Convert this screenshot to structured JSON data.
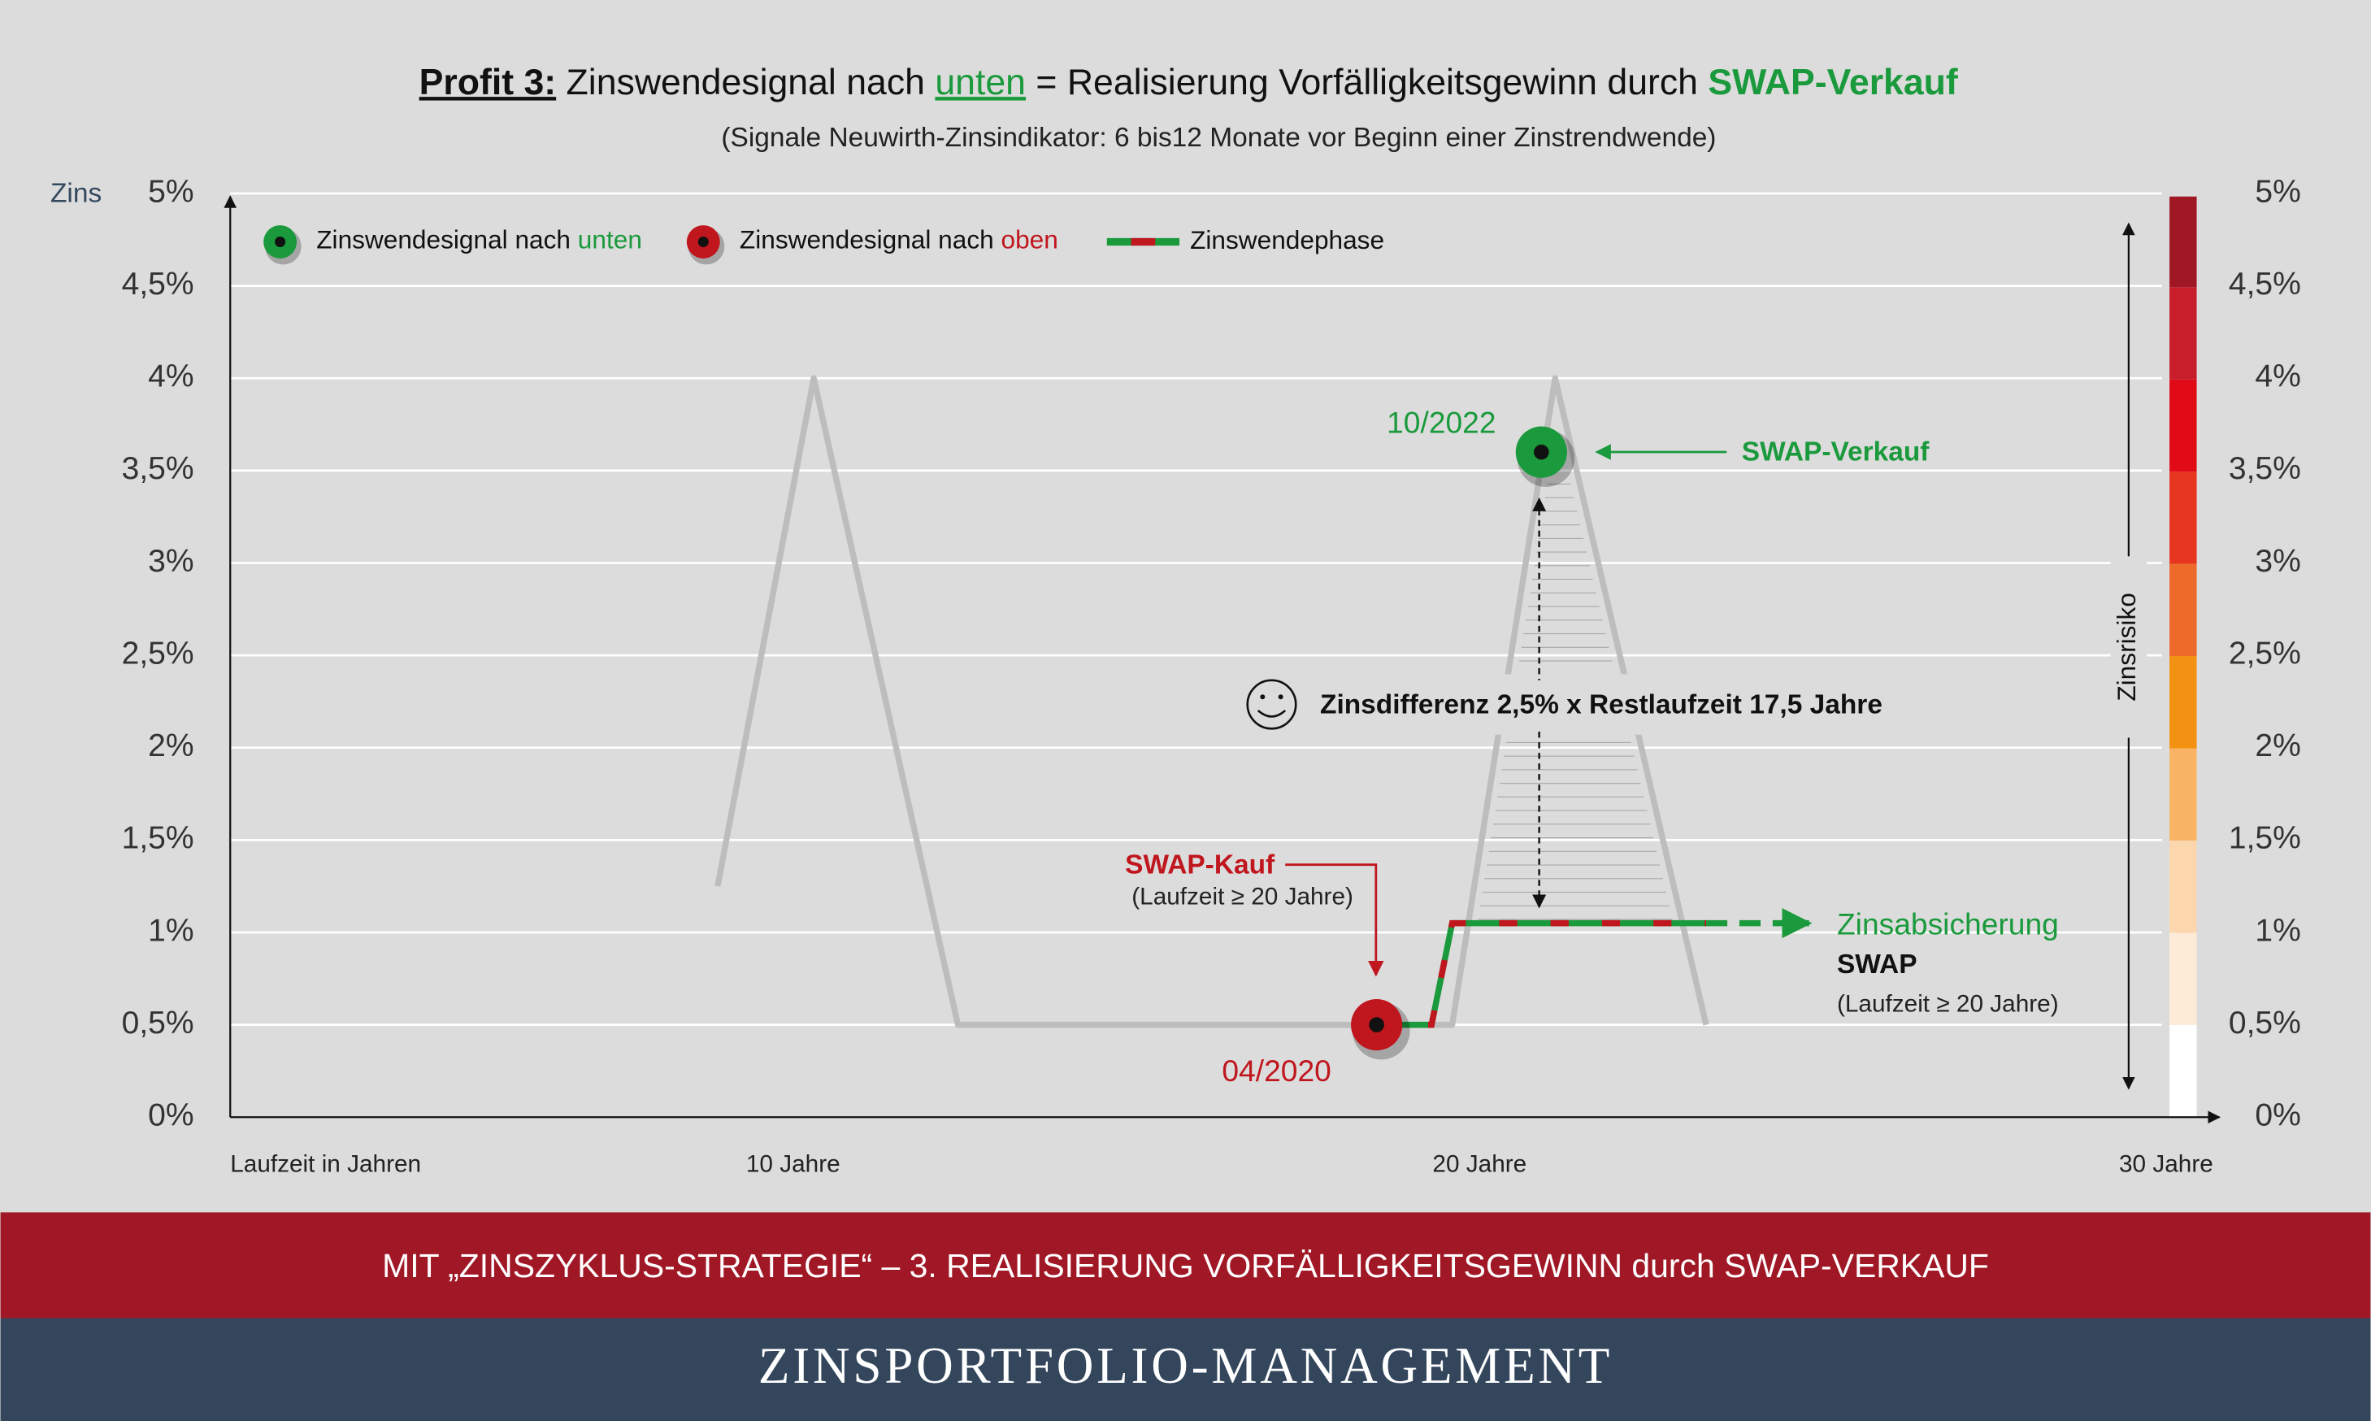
{
  "chart_data": {
    "type": "line",
    "title_parts": [
      "Profit 3:",
      " Zinswendesignal nach ",
      "unten",
      " = Realisierung Vorfälligkeitsgewinn durch ",
      "SWAP-Verkauf"
    ],
    "subtitle": "(Signale Neuwirth-Zinsindikator: 6 bis12 Monate vor Beginn einer Zinstrendwende)",
    "y_label": "Zins",
    "x_label": "Laufzeit in Jahren",
    "xlim": [
      1.8,
      30.6
    ],
    "xticks": [
      {
        "value": 10,
        "label": "10 Jahre"
      },
      {
        "value": 20,
        "label": "20 Jahre"
      },
      {
        "value": 30,
        "label": "30 Jahre"
      }
    ],
    "ylim": [
      0,
      5
    ],
    "yticks": [
      {
        "value": 0,
        "label": "0%"
      },
      {
        "value": 0.5,
        "label": "0,5%"
      },
      {
        "value": 1,
        "label": "1%"
      },
      {
        "value": 1.5,
        "label": "1,5%"
      },
      {
        "value": 2,
        "label": "2%"
      },
      {
        "value": 2.5,
        "label": "2,5%"
      },
      {
        "value": 3,
        "label": "3%"
      },
      {
        "value": 3.5,
        "label": "3,5%"
      },
      {
        "value": 4,
        "label": "4%"
      },
      {
        "value": 4.5,
        "label": "4,5%"
      },
      {
        "value": 5,
        "label": "5%"
      }
    ],
    "grid": true,
    "legend": [
      {
        "text": "Zinswendesignal nach ",
        "highlight": "unten",
        "color": "#1a9a3c"
      },
      {
        "text": "Zinswendesignal nach ",
        "highlight": "oben",
        "color": "#c0161e"
      },
      {
        "text": "Zinswendephase"
      }
    ],
    "series": [
      {
        "color": "#bdbdbd",
        "x": [
          8.9,
          10.3,
          12.4,
          19.6,
          21.1,
          23.3
        ],
        "values": [
          1.25,
          4,
          0.5,
          0.5,
          4,
          0.5
        ]
      },
      {
        "color": "#1a9a3c",
        "dash_color": "#c0161e",
        "x": [
          18.5,
          19.3,
          19.6,
          23.3
        ],
        "values": [
          0.5,
          0.5,
          1.05,
          1.05
        ]
      },
      {
        "color": "#1a9a3c",
        "dashed": true,
        "x": [
          23.3,
          24.8
        ],
        "values": [
          1.05,
          1.05
        ]
      }
    ],
    "points": [
      {
        "label": "04/2020",
        "x": 18.5,
        "value": 0.5,
        "color": "#c0161e"
      },
      {
        "label": "10/2022",
        "x": 20.9,
        "value": 3.6,
        "color": "#1a9a3c"
      }
    ],
    "annotations": {
      "sell": "SWAP-Verkauf",
      "difference": "Zinsdifferenz 2,5% x Restlaufzeit 17,5 Jahre",
      "buy": "SWAP-Kauf",
      "buy_note": "(Laufzeit ≥ 20 Jahre)",
      "hedge": "Zinsabsicherung",
      "hedge_swap": "SWAP",
      "hedge_note": "(Laufzeit ≥ 20 Jahre)",
      "risk": "Zinsrisiko"
    },
    "banner": "MIT „ZINSZYKLUS-STRATEGIE“ – 3. REALISIERUNG VORFÄLLIGKEITSGEWINN durch SWAP-VERKAUF",
    "footer": "ZINSPORTFOLIO-MANAGEMENT"
  }
}
